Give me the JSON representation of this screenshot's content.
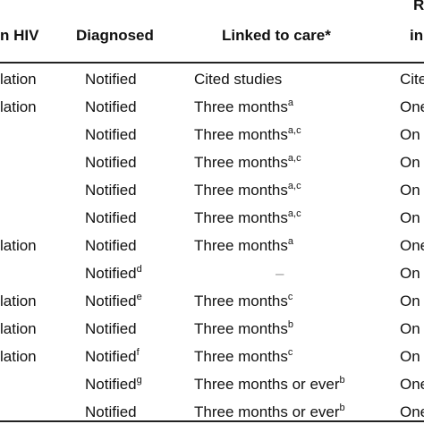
{
  "header": {
    "cells": [
      "n HIV",
      "Diagnosed",
      "Linked to care*"
    ],
    "last": [
      "R",
      "in"
    ]
  },
  "table": {
    "rows": [
      [
        {
          "text": "lation"
        },
        {
          "text": "Notified"
        },
        {
          "text": "Cited studies"
        },
        {
          "text": "Cite"
        }
      ],
      [
        {
          "text": "lation"
        },
        {
          "text": "Notified"
        },
        {
          "text": "Three months",
          "sup": "a"
        },
        {
          "text": "One"
        }
      ],
      [
        null,
        {
          "text": "Notified"
        },
        {
          "text": "Three months",
          "sup": "a,c"
        },
        {
          "text": "On"
        }
      ],
      [
        null,
        {
          "text": "Notified"
        },
        {
          "text": "Three months",
          "sup": "a,c"
        },
        {
          "text": "On"
        }
      ],
      [
        null,
        {
          "text": "Notified"
        },
        {
          "text": "Three months",
          "sup": "a,c"
        },
        {
          "text": "On"
        }
      ],
      [
        null,
        {
          "text": "Notified"
        },
        {
          "text": "Three months",
          "sup": "a,c"
        },
        {
          "text": "On"
        }
      ],
      [
        {
          "text": "lation"
        },
        {
          "text": "Notified"
        },
        {
          "text": "Three months",
          "sup": "a"
        },
        {
          "text": "One"
        }
      ],
      [
        null,
        {
          "text": "Notified",
          "sup": "d"
        },
        {
          "text": "–"
        },
        {
          "text": "On"
        }
      ],
      [
        {
          "text": "lation"
        },
        {
          "text": "Notified",
          "sup": "e"
        },
        {
          "text": "Three months",
          "sup": "c"
        },
        {
          "text": "On"
        }
      ],
      [
        {
          "text": "lation"
        },
        {
          "text": "Notified"
        },
        {
          "text": "Three months",
          "sup": "b"
        },
        {
          "text": "On"
        }
      ],
      [
        {
          "text": "lation"
        },
        {
          "text": "Notified",
          "sup": "f"
        },
        {
          "text": "Three months",
          "sup": "c"
        },
        {
          "text": "On"
        }
      ],
      [
        null,
        {
          "text": "Notified",
          "sup": "g"
        },
        {
          "text": "Three months or ever",
          "sup": "b"
        },
        {
          "text": "One"
        }
      ],
      [
        null,
        {
          "text": "Notified"
        },
        {
          "text": "Three months or ever",
          "sup": "b"
        },
        {
          "text": "One"
        }
      ]
    ]
  }
}
